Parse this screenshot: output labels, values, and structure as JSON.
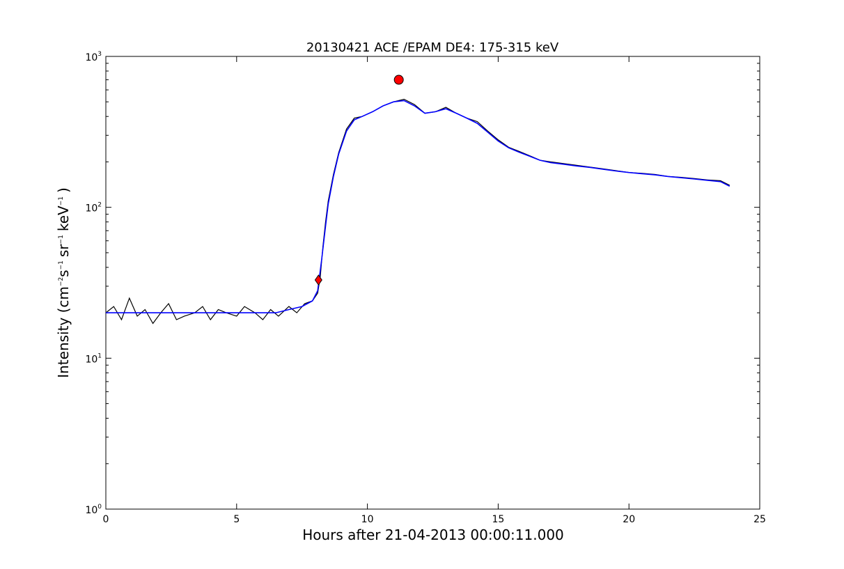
{
  "chart_data": {
    "type": "line",
    "title": "20130421 ACE /EPAM DE4: 175-315 keV",
    "xlabel": "Hours after 21-04-2013 00:00:11.000",
    "ylabel": {
      "prefix": "Intensity (cm",
      "sup1": "−2",
      "mid1": "s",
      "sup2": "−1",
      "mid2": "sr",
      "sup3": "−1",
      "mid3": "keV",
      "sup4": "−1",
      "suffix": ")"
    },
    "xlim": [
      0,
      25
    ],
    "ylim": [
      1,
      1000
    ],
    "yscale": "log",
    "x_ticks": [
      {
        "value": 0,
        "label": "0"
      },
      {
        "value": 5,
        "label": "5"
      },
      {
        "value": 10,
        "label": "10"
      },
      {
        "value": 15,
        "label": "15"
      },
      {
        "value": 20,
        "label": "20"
      },
      {
        "value": 25,
        "label": "25"
      }
    ],
    "y_ticks": [
      {
        "value": 1,
        "base": "10",
        "exp": "0"
      },
      {
        "value": 10,
        "base": "10",
        "exp": "1"
      },
      {
        "value": 100,
        "base": "10",
        "exp": "2"
      },
      {
        "value": 1000,
        "base": "10",
        "exp": "3"
      }
    ],
    "grid": false,
    "series": [
      {
        "color": "#000000",
        "points": [
          [
            0.0,
            20
          ],
          [
            0.3,
            22
          ],
          [
            0.6,
            18
          ],
          [
            0.9,
            25
          ],
          [
            1.2,
            19
          ],
          [
            1.5,
            21
          ],
          [
            1.8,
            17
          ],
          [
            2.1,
            20
          ],
          [
            2.4,
            23
          ],
          [
            2.7,
            18
          ],
          [
            3.0,
            19
          ],
          [
            3.4,
            20
          ],
          [
            3.7,
            22
          ],
          [
            4.0,
            18
          ],
          [
            4.3,
            21
          ],
          [
            4.6,
            20
          ],
          [
            5.0,
            19
          ],
          [
            5.3,
            22
          ],
          [
            5.7,
            20
          ],
          [
            6.0,
            18
          ],
          [
            6.3,
            21
          ],
          [
            6.6,
            19
          ],
          [
            7.0,
            22
          ],
          [
            7.3,
            20
          ],
          [
            7.6,
            23
          ],
          [
            7.9,
            24
          ],
          [
            8.1,
            27
          ],
          [
            8.2,
            35
          ],
          [
            8.3,
            55
          ],
          [
            8.4,
            80
          ],
          [
            8.5,
            110
          ],
          [
            8.7,
            165
          ],
          [
            8.9,
            230
          ],
          [
            9.2,
            330
          ],
          [
            9.5,
            390
          ],
          [
            9.8,
            400
          ],
          [
            10.2,
            430
          ],
          [
            10.6,
            470
          ],
          [
            11.0,
            500
          ],
          [
            11.4,
            520
          ],
          [
            11.8,
            480
          ],
          [
            12.2,
            420
          ],
          [
            12.6,
            430
          ],
          [
            13.0,
            460
          ],
          [
            13.4,
            420
          ],
          [
            13.8,
            390
          ],
          [
            14.2,
            370
          ],
          [
            14.6,
            320
          ],
          [
            15.0,
            280
          ],
          [
            15.4,
            250
          ],
          [
            15.8,
            235
          ],
          [
            16.2,
            220
          ],
          [
            16.6,
            205
          ],
          [
            17.0,
            200
          ],
          [
            17.5,
            195
          ],
          [
            18.0,
            190
          ],
          [
            18.5,
            185
          ],
          [
            19.0,
            180
          ],
          [
            19.5,
            175
          ],
          [
            20.0,
            170
          ],
          [
            20.5,
            168
          ],
          [
            21.0,
            165
          ],
          [
            21.5,
            160
          ],
          [
            22.0,
            158
          ],
          [
            22.5,
            155
          ],
          [
            23.0,
            152
          ],
          [
            23.5,
            150
          ],
          [
            23.85,
            140
          ]
        ]
      },
      {
        "color": "#0000ff",
        "points": [
          [
            0.0,
            20
          ],
          [
            0.5,
            20
          ],
          [
            1.0,
            20
          ],
          [
            1.5,
            20
          ],
          [
            2.0,
            20
          ],
          [
            2.5,
            20
          ],
          [
            3.0,
            20
          ],
          [
            3.5,
            20
          ],
          [
            4.0,
            20
          ],
          [
            4.5,
            20
          ],
          [
            5.0,
            20
          ],
          [
            5.5,
            20
          ],
          [
            6.0,
            20
          ],
          [
            6.5,
            20
          ],
          [
            7.0,
            21
          ],
          [
            7.5,
            22
          ],
          [
            7.9,
            24
          ],
          [
            8.1,
            28
          ],
          [
            8.25,
            45
          ],
          [
            8.4,
            75
          ],
          [
            8.5,
            105
          ],
          [
            8.7,
            160
          ],
          [
            8.9,
            225
          ],
          [
            9.2,
            320
          ],
          [
            9.5,
            380
          ],
          [
            9.8,
            400
          ],
          [
            10.2,
            430
          ],
          [
            10.6,
            470
          ],
          [
            11.0,
            500
          ],
          [
            11.4,
            510
          ],
          [
            11.8,
            470
          ],
          [
            12.2,
            420
          ],
          [
            12.6,
            430
          ],
          [
            13.0,
            450
          ],
          [
            13.4,
            420
          ],
          [
            13.8,
            390
          ],
          [
            14.2,
            360
          ],
          [
            14.6,
            315
          ],
          [
            15.0,
            275
          ],
          [
            15.4,
            248
          ],
          [
            15.8,
            232
          ],
          [
            16.2,
            218
          ],
          [
            16.6,
            205
          ],
          [
            17.0,
            198
          ],
          [
            17.5,
            193
          ],
          [
            18.0,
            188
          ],
          [
            18.5,
            184
          ],
          [
            19.0,
            179
          ],
          [
            19.5,
            174
          ],
          [
            20.0,
            170
          ],
          [
            20.5,
            167
          ],
          [
            21.0,
            164
          ],
          [
            21.5,
            160
          ],
          [
            22.0,
            157
          ],
          [
            22.5,
            154
          ],
          [
            23.0,
            151
          ],
          [
            23.5,
            148
          ],
          [
            23.85,
            138
          ]
        ]
      }
    ],
    "markers": [
      {
        "x": 8.13,
        "y": 33,
        "shape": "diamond",
        "color": "#ff0000"
      },
      {
        "x": 11.2,
        "y": 700,
        "shape": "circle",
        "color": "#ff0000"
      }
    ]
  }
}
